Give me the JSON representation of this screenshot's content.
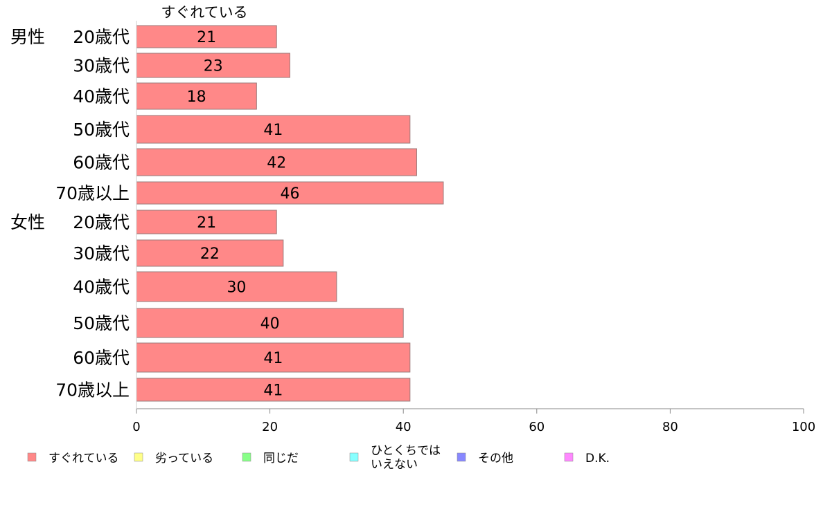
{
  "chart_data": {
    "type": "bar",
    "orientation": "horizontal",
    "series_header": "すぐれている",
    "groups": [
      {
        "label": "男性",
        "start": 0
      },
      {
        "label": "女性",
        "start": 6
      }
    ],
    "categories": [
      "20歳代",
      "30歳代",
      "40歳代",
      "50歳代",
      "60歳代",
      "70歳以上",
      "20歳代",
      "30歳代",
      "40歳代",
      "50歳代",
      "60歳代",
      "70歳以上"
    ],
    "series": [
      {
        "name": "すぐれている",
        "values": [
          21,
          23,
          18,
          41,
          42,
          46,
          21,
          22,
          30,
          40,
          41,
          41
        ]
      }
    ],
    "xlim": [
      0,
      100
    ],
    "xticks": [
      0,
      20,
      40,
      60,
      80,
      100
    ],
    "grid": false,
    "legend_position": "bottom",
    "legend": [
      {
        "label": "すぐれている",
        "color": "#ff8888"
      },
      {
        "label": "劣っている",
        "color": "#ffff88"
      },
      {
        "label": "同じだ",
        "color": "#88ff88"
      },
      {
        "label": "ひとくちでは\nいえない",
        "color": "#88ffff"
      },
      {
        "label": "その他",
        "color": "#8888ff"
      },
      {
        "label": "D.K.",
        "color": "#ff88ff"
      }
    ],
    "bar_color": "#ff8888",
    "bar_stroke": "#9a7a7a",
    "axis_color": "#888888"
  }
}
